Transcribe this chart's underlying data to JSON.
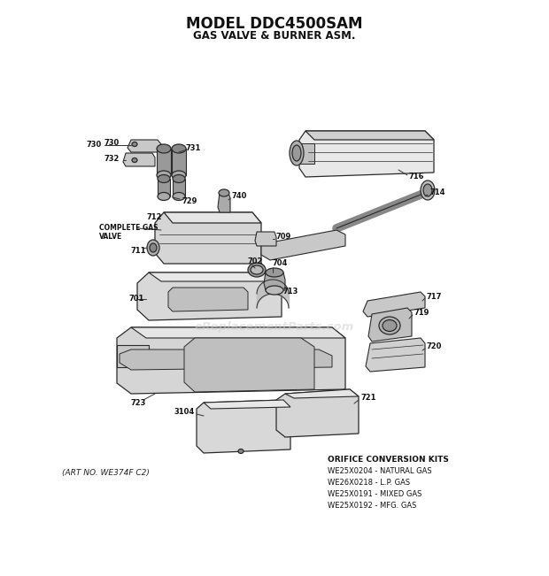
{
  "title_line1": "MODEL DDC4500SAM",
  "title_line2": "GAS VALVE & BURNER ASM.",
  "bg_color": "#ffffff",
  "line_color": "#2a2a2a",
  "art_no": "(ART NO. WE374F C2)",
  "orifice_title": "ORIFICE CONVERSION KITS",
  "orifice_lines": [
    "WE25X0204 - NATURAL GAS",
    "WE26X0218 - L.P. GAS",
    "WE25X0191 - MIXED GAS",
    "WE25X0192 - MFG. GAS"
  ],
  "watermark": "eReplacementParts.com",
  "fig_width": 6.2,
  "fig_height": 6.51,
  "dpi": 100
}
